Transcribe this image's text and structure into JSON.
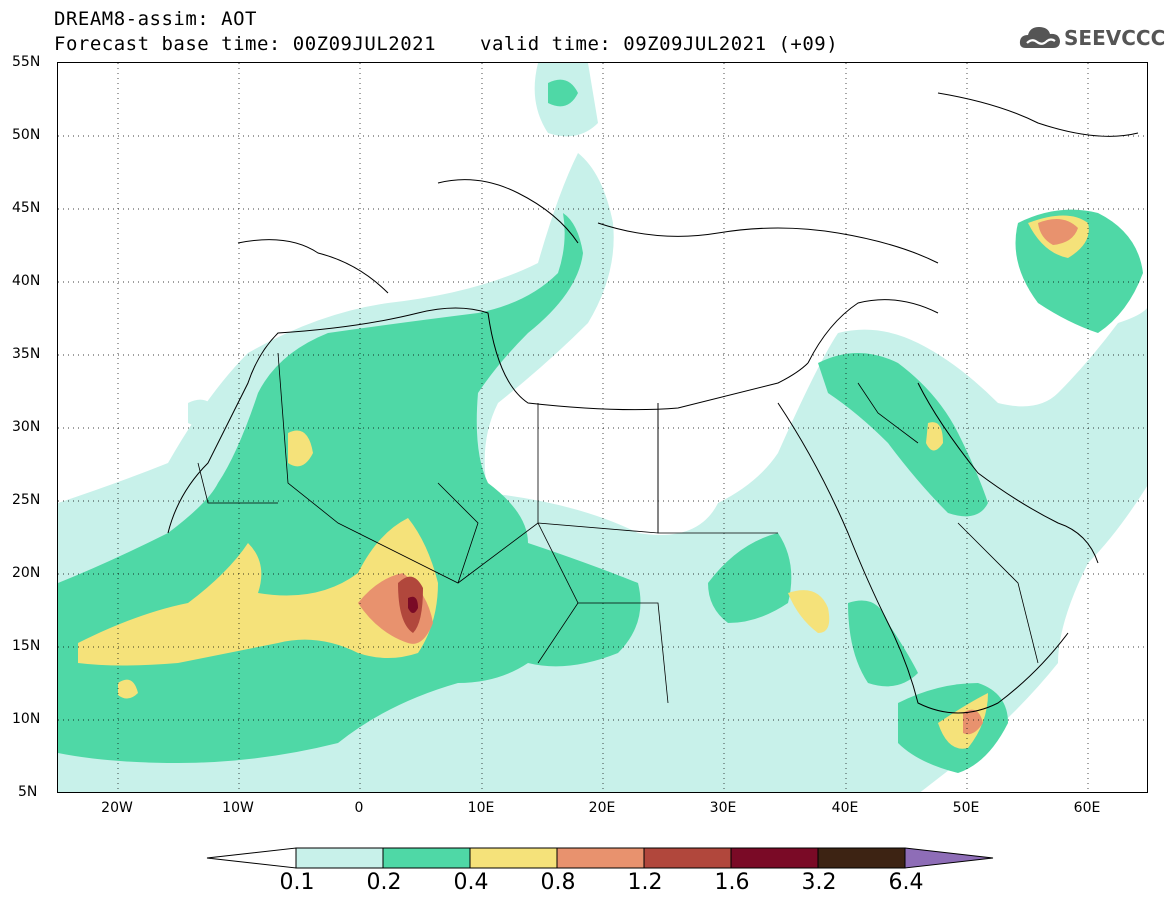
{
  "title": {
    "line1": "DREAM8-assim: AOT",
    "line2": "Forecast base time: 00Z09JUL2021",
    "valid": "valid time: 09Z09JUL2021 (+09)"
  },
  "logo": {
    "text": "SEEVCCC",
    "icon": "cloud-icon"
  },
  "map": {
    "lat_range": [
      5,
      55
    ],
    "lon_range": [
      -25,
      65
    ],
    "lat_labels": [
      "55N",
      "50N",
      "45N",
      "40N",
      "35N",
      "30N",
      "25N",
      "20N",
      "15N",
      "10N",
      "5N"
    ],
    "lon_labels": [
      "20W",
      "10W",
      "0",
      "10E",
      "20E",
      "30E",
      "40E",
      "50E",
      "60E"
    ],
    "grid": "dotted"
  },
  "colorbar": {
    "labels": [
      "0.1",
      "0.2",
      "0.4",
      "0.8",
      "1.2",
      "1.6",
      "3.2",
      "6.4"
    ],
    "colors": [
      "#ffffff",
      "#c8f1ea",
      "#4fd8a6",
      "#f5e27a",
      "#e8926e",
      "#b1473c",
      "#7a0a26",
      "#3d2313",
      "#8e6db7"
    ]
  }
}
